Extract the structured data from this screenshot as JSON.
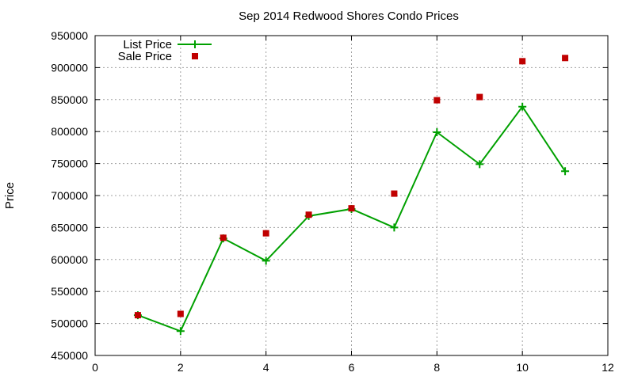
{
  "chart_data": {
    "type": "line",
    "title": "Sep 2014 Redwood Shores Condo Prices",
    "xlabel": "",
    "ylabel": "Price",
    "xlim": [
      0,
      12
    ],
    "ylim": [
      450000,
      950000
    ],
    "x_ticks": [
      0,
      2,
      4,
      6,
      8,
      10,
      12
    ],
    "y_ticks": [
      450000,
      500000,
      550000,
      600000,
      650000,
      700000,
      750000,
      800000,
      850000,
      900000,
      950000
    ],
    "grid": true,
    "legend_position": "top-left",
    "series": [
      {
        "name": "List Price",
        "style": "line-with-plus-markers",
        "color": "#00a000",
        "x": [
          1,
          2,
          3,
          4,
          5,
          6,
          7,
          8,
          9,
          10,
          11
        ],
        "y": [
          513000,
          488000,
          633000,
          598000,
          668000,
          679000,
          650000,
          799000,
          749000,
          839000,
          738000
        ]
      },
      {
        "name": "Sale Price",
        "style": "square-markers",
        "color": "#c00000",
        "x": [
          1,
          2,
          3,
          4,
          5,
          6,
          7,
          8,
          9,
          10,
          11
        ],
        "y": [
          513000,
          515000,
          634000,
          641000,
          670000,
          680000,
          703000,
          849000,
          854000,
          910000,
          915000
        ]
      }
    ]
  }
}
